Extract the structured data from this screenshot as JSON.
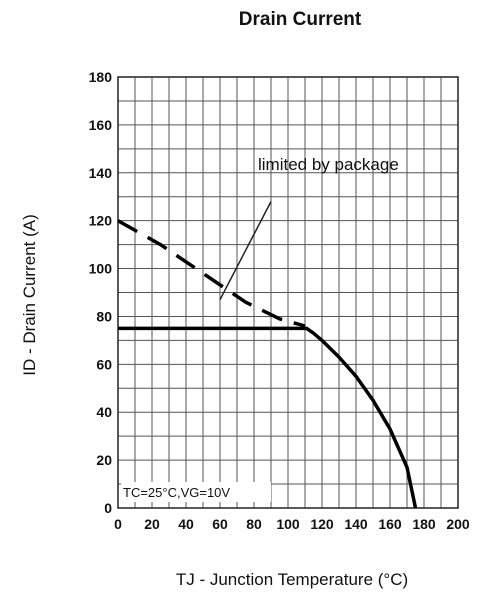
{
  "chart_data": {
    "type": "line",
    "title": "Drain Current",
    "xlabel": "TJ - Junction Temperature (°C)",
    "ylabel": "ID - Drain Current (A)",
    "xlim": [
      0,
      200
    ],
    "ylim": [
      0,
      180
    ],
    "x_ticks": [
      "0",
      "20",
      "40",
      "60",
      "80",
      "100",
      "120",
      "140",
      "160",
      "180",
      "200"
    ],
    "y_ticks": [
      "0",
      "20",
      "40",
      "60",
      "80",
      "100",
      "120",
      "140",
      "160",
      "180"
    ],
    "grid": true,
    "series": [
      {
        "style": "dashed",
        "points": [
          [
            0,
            120
          ],
          [
            25,
            110
          ],
          [
            50,
            98
          ],
          [
            75,
            86
          ],
          [
            95,
            79
          ],
          [
            110,
            76
          ]
        ]
      },
      {
        "style": "solid",
        "points": [
          [
            0,
            75
          ],
          [
            111,
            75
          ],
          [
            115,
            73
          ],
          [
            120,
            70
          ],
          [
            130,
            63
          ],
          [
            140,
            55
          ],
          [
            150,
            45
          ],
          [
            160,
            33
          ],
          [
            170,
            17
          ],
          [
            175,
            0
          ]
        ]
      }
    ],
    "annotation": {
      "text": "limited by package",
      "pointer_from": [
        90,
        128
      ],
      "pointer_to": [
        60,
        87
      ]
    },
    "condition_label": "TC=25°C,VG=10V"
  }
}
